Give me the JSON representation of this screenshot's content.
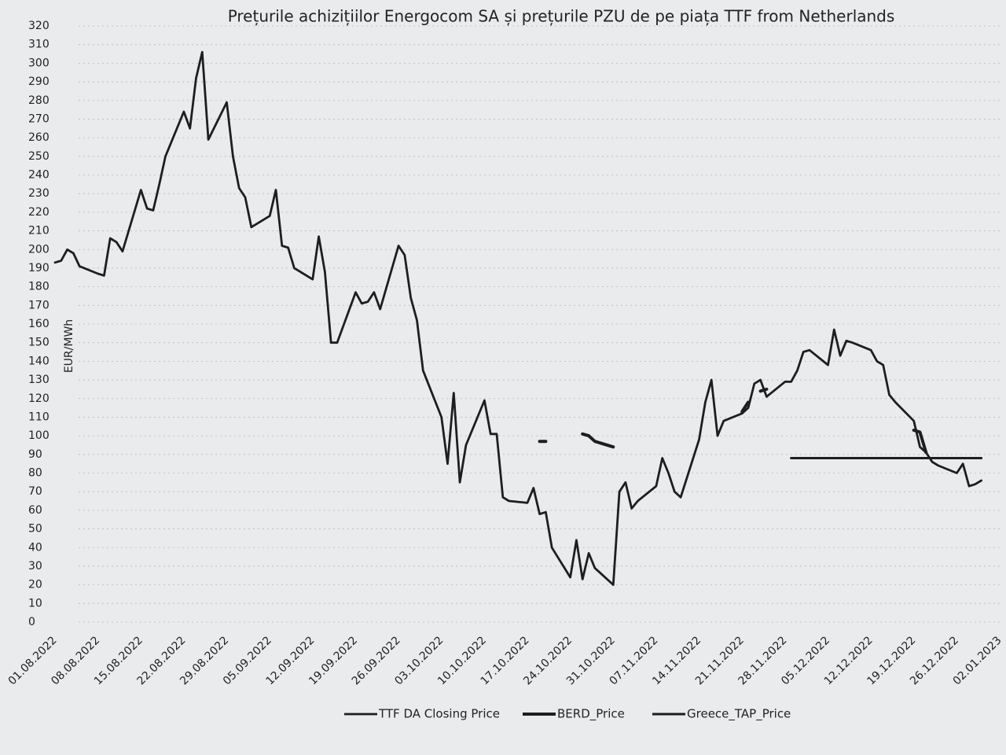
{
  "chart_data": {
    "type": "line",
    "title": "Prețurile achizițiilor Energocom SA și prețurile PZU de pe piața TTF from Netherlands",
    "y_label": "EUR/MWh",
    "x": [
      "01.08.2022",
      "02.08.2022",
      "03.08.2022",
      "04.08.2022",
      "05.08.2022",
      "08.08.2022",
      "09.08.2022",
      "10.08.2022",
      "11.08.2022",
      "12.08.2022",
      "15.08.2022",
      "16.08.2022",
      "17.08.2022",
      "18.08.2022",
      "19.08.2022",
      "22.08.2022",
      "23.08.2022",
      "24.08.2022",
      "25.08.2022",
      "26.08.2022",
      "29.08.2022",
      "30.08.2022",
      "31.08.2022",
      "01.09.2022",
      "02.09.2022",
      "05.09.2022",
      "06.09.2022",
      "07.09.2022",
      "08.09.2022",
      "09.09.2022",
      "12.09.2022",
      "13.09.2022",
      "14.09.2022",
      "15.09.2022",
      "16.09.2022",
      "19.09.2022",
      "20.09.2022",
      "21.09.2022",
      "22.09.2022",
      "23.09.2022",
      "26.09.2022",
      "27.09.2022",
      "28.09.2022",
      "29.09.2022",
      "30.09.2022",
      "03.10.2022",
      "04.10.2022",
      "05.10.2022",
      "06.10.2022",
      "07.10.2022",
      "10.10.2022",
      "11.10.2022",
      "12.10.2022",
      "13.10.2022",
      "14.10.2022",
      "17.10.2022",
      "18.10.2022",
      "19.10.2022",
      "20.10.2022",
      "21.10.2022",
      "24.10.2022",
      "25.10.2022",
      "26.10.2022",
      "27.10.2022",
      "28.10.2022",
      "31.10.2022",
      "01.11.2022",
      "02.11.2022",
      "03.11.2022",
      "04.11.2022",
      "07.11.2022",
      "08.11.2022",
      "09.11.2022",
      "10.11.2022",
      "11.11.2022",
      "14.11.2022",
      "15.11.2022",
      "16.11.2022",
      "17.11.2022",
      "18.11.2022",
      "21.11.2022",
      "22.11.2022",
      "23.11.2022",
      "24.11.2022",
      "25.11.2022",
      "28.11.2022",
      "29.11.2022",
      "30.11.2022",
      "01.12.2022",
      "02.12.2022",
      "05.12.2022",
      "06.12.2022",
      "07.12.2022",
      "08.12.2022",
      "09.12.2022",
      "12.12.2022",
      "13.12.2022",
      "14.12.2022",
      "15.12.2022",
      "16.12.2022",
      "19.12.2022",
      "20.12.2022",
      "21.12.2022",
      "22.12.2022",
      "23.12.2022",
      "26.12.2022",
      "27.12.2022",
      "28.12.2022",
      "29.12.2022",
      "30.12.2022"
    ],
    "series": [
      {
        "name": "TTF DA Closing Price",
        "color": "#1e1e1e",
        "values": [
          193,
          194,
          200,
          198,
          191,
          187,
          186,
          206,
          204,
          199,
          232,
          222,
          221,
          235,
          250,
          274,
          265,
          292,
          306,
          259,
          279,
          250,
          233,
          228,
          212,
          218,
          232,
          202,
          201,
          190,
          184,
          207,
          188,
          150,
          150,
          177,
          171,
          172,
          177,
          168,
          202,
          197,
          174,
          162,
          135,
          110,
          85,
          123,
          75,
          95,
          119,
          101,
          101,
          67,
          65,
          64,
          72,
          58,
          59,
          40,
          24,
          44,
          23,
          37,
          29,
          20,
          70,
          75,
          61,
          65,
          73,
          88,
          80,
          70,
          67,
          98,
          118,
          130,
          100,
          108,
          112,
          115,
          128,
          130,
          121,
          129,
          129,
          135,
          145,
          146,
          138,
          157,
          143,
          151,
          150,
          146,
          140,
          138,
          122,
          118,
          108,
          94,
          91,
          86,
          84,
          80,
          85,
          73,
          74,
          76
        ]
      },
      {
        "name": "BERD_Price",
        "color": "#1e1e1e",
        "values": [
          null,
          null,
          null,
          null,
          null,
          null,
          null,
          null,
          null,
          null,
          null,
          null,
          null,
          null,
          null,
          null,
          null,
          null,
          null,
          null,
          null,
          null,
          null,
          null,
          null,
          null,
          null,
          null,
          null,
          null,
          null,
          null,
          null,
          null,
          null,
          null,
          null,
          null,
          null,
          null,
          null,
          null,
          null,
          null,
          null,
          null,
          null,
          null,
          null,
          null,
          null,
          null,
          null,
          null,
          null,
          null,
          null,
          97,
          97,
          null,
          null,
          null,
          101,
          100,
          97,
          94,
          null,
          null,
          null,
          null,
          null,
          null,
          null,
          null,
          null,
          null,
          null,
          null,
          null,
          null,
          113,
          118,
          null,
          124,
          125,
          null,
          null,
          null,
          null,
          null,
          null,
          null,
          null,
          null,
          null,
          null,
          null,
          null,
          null,
          null,
          103,
          102,
          91,
          null,
          null,
          null,
          null,
          null,
          null,
          null
        ]
      },
      {
        "name": "Greece_TAP_Price",
        "color": "#1e1e1e",
        "values": [
          null,
          null,
          null,
          null,
          null,
          null,
          null,
          null,
          null,
          null,
          null,
          null,
          null,
          null,
          null,
          null,
          null,
          null,
          null,
          null,
          null,
          null,
          null,
          null,
          null,
          null,
          null,
          null,
          null,
          null,
          null,
          null,
          null,
          null,
          null,
          null,
          null,
          null,
          null,
          null,
          null,
          null,
          null,
          null,
          null,
          null,
          null,
          null,
          null,
          null,
          null,
          null,
          null,
          null,
          null,
          null,
          null,
          null,
          null,
          null,
          null,
          null,
          null,
          null,
          null,
          null,
          null,
          null,
          null,
          null,
          null,
          null,
          null,
          null,
          null,
          null,
          null,
          null,
          null,
          null,
          null,
          null,
          null,
          null,
          null,
          null,
          88,
          88,
          88,
          88,
          88,
          88,
          88,
          88,
          88,
          88,
          88,
          88,
          88,
          88,
          88,
          88,
          88,
          88,
          88,
          88,
          88,
          88,
          88,
          88
        ]
      }
    ],
    "xlim": [
      "01.08.2022",
      "02.01.2023"
    ],
    "xticks": [
      "01.08.2022",
      "08.08.2022",
      "15.08.2022",
      "22.08.2022",
      "29.08.2022",
      "05.09.2022",
      "12.09.2022",
      "19.09.2022",
      "26.09.2022",
      "03.10.2022",
      "10.10.2022",
      "17.10.2022",
      "24.10.2022",
      "31.10.2022",
      "07.11.2022",
      "14.11.2022",
      "21.11.2022",
      "28.11.2022",
      "05.12.2022",
      "12.12.2022",
      "19.12.2022",
      "26.12.2022",
      "02.01.2023"
    ],
    "ylim": [
      0,
      320
    ],
    "yticks": [
      0,
      10,
      20,
      30,
      40,
      50,
      60,
      70,
      80,
      90,
      100,
      110,
      120,
      130,
      140,
      150,
      160,
      170,
      180,
      190,
      200,
      210,
      220,
      230,
      240,
      250,
      260,
      270,
      280,
      290,
      300,
      310,
      320
    ],
    "grid": true,
    "legend": "bottom"
  }
}
